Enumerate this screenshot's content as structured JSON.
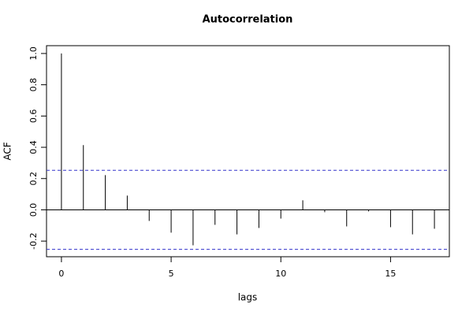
{
  "chart_data": {
    "type": "acf",
    "title": "Autocorrelation",
    "xlabel": "lags",
    "ylabel": "ACF",
    "x": [
      0,
      1,
      2,
      3,
      4,
      5,
      6,
      7,
      8,
      9,
      10,
      11,
      12,
      13,
      14,
      15,
      16,
      17
    ],
    "values": [
      1.0,
      0.414,
      0.222,
      0.091,
      -0.071,
      -0.146,
      -0.227,
      -0.096,
      -0.157,
      -0.116,
      -0.056,
      0.061,
      -0.015,
      -0.106,
      -0.01,
      -0.111,
      -0.157,
      -0.121
    ],
    "color": "#000000",
    "ci_lines": [
      0.253,
      -0.253
    ],
    "ci_color": "#3333cc",
    "xlim": [
      -0.68,
      17.68
    ],
    "xticks": [
      0,
      5,
      10,
      15
    ],
    "ylim": [
      -0.3,
      1.05
    ],
    "yticks": [
      -0.2,
      {
        "value": 0,
        "label": "0.0"
      },
      0.2,
      0.4,
      0.6,
      0.8,
      {
        "value": 1,
        "label": "1.0"
      }
    ]
  }
}
